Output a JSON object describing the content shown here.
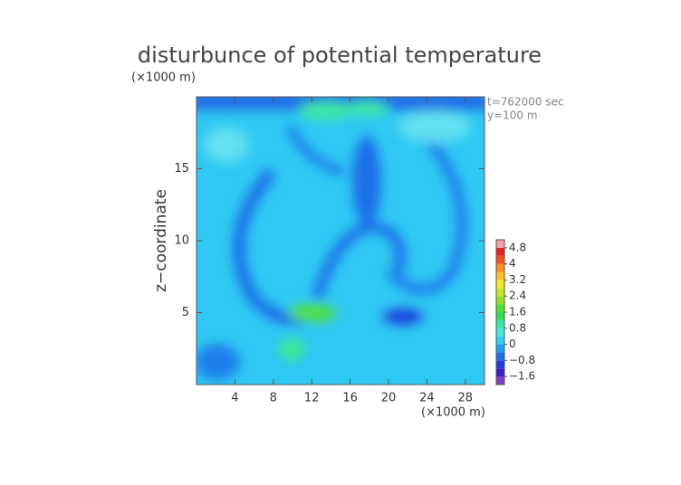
{
  "chart_data": {
    "type": "contour",
    "title": "disturbunce of potential temperature",
    "y_unit": "(×1000 m)",
    "x_unit": "(×1000 m)",
    "ylabel": "z−coordinate",
    "annotations": [
      "t=762000 sec",
      "y=100 m"
    ],
    "xlim": [
      0,
      30
    ],
    "xticks": [
      4,
      8,
      12,
      16,
      20,
      24,
      28
    ],
    "ylim": [
      0,
      20
    ],
    "yticks": [
      5,
      10,
      15
    ],
    "colorbar": {
      "lim": [
        -2,
        5.2
      ],
      "ticks": [
        4.8,
        4,
        3.2,
        2.4,
        1.6,
        0.8,
        0,
        {
          "value": -0.8,
          "label": "−0.8"
        },
        {
          "value": -1.6,
          "label": "−1.6"
        }
      ],
      "colors": [
        "#7b3fc0",
        "#3b1fc8",
        "#1f3fdc",
        "#1f6fe8",
        "#1fa0f0",
        "#2ad0f5",
        "#40e8e0",
        "#30e8a0",
        "#30e050",
        "#50e030",
        "#90e020",
        "#c8e820",
        "#f0f020",
        "#f8c020",
        "#f89020",
        "#f05020",
        "#e82020",
        "#f0a0a0"
      ]
    }
  }
}
